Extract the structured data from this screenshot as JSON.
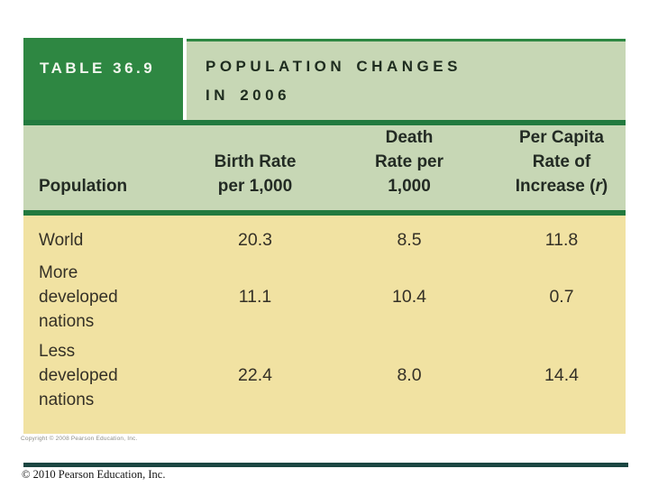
{
  "title_bar": {
    "table_number": "TABLE 36.9",
    "title_line1": "POPULATION CHANGES",
    "title_line2": "IN 2006"
  },
  "header": {
    "population": "Population",
    "birth_rate": [
      "Birth Rate",
      "per 1,000"
    ],
    "death_rate": [
      "Death",
      "Rate per",
      "1,000"
    ],
    "per_capita": {
      "line1": "Per Capita",
      "line2": "Rate of",
      "line3": {
        "pre": "Increase (",
        "r": "r",
        "post": ")"
      }
    }
  },
  "rows": [
    {
      "label": [
        "World"
      ],
      "birth": "20.3",
      "death": "8.5",
      "increase": "11.8"
    },
    {
      "label": [
        "More",
        "developed",
        "nations"
      ],
      "birth": "11.1",
      "death": "10.4",
      "increase": "0.7"
    },
    {
      "label": [
        "Less",
        "developed",
        "nations"
      ],
      "birth": "22.4",
      "death": "8.0",
      "increase": "14.4"
    }
  ],
  "footer": {
    "table_copyright": "Copyright © 2008 Pearson Education, Inc.",
    "slide_copyright": "© 2010 Pearson Education, Inc."
  },
  "colors": {
    "dark_green": "#2e8742",
    "light_green": "#c7d7b5",
    "body_tan": "#f1e2a2",
    "rule_green": "#227a3f",
    "footer_bar_teal": "#1b4642"
  }
}
